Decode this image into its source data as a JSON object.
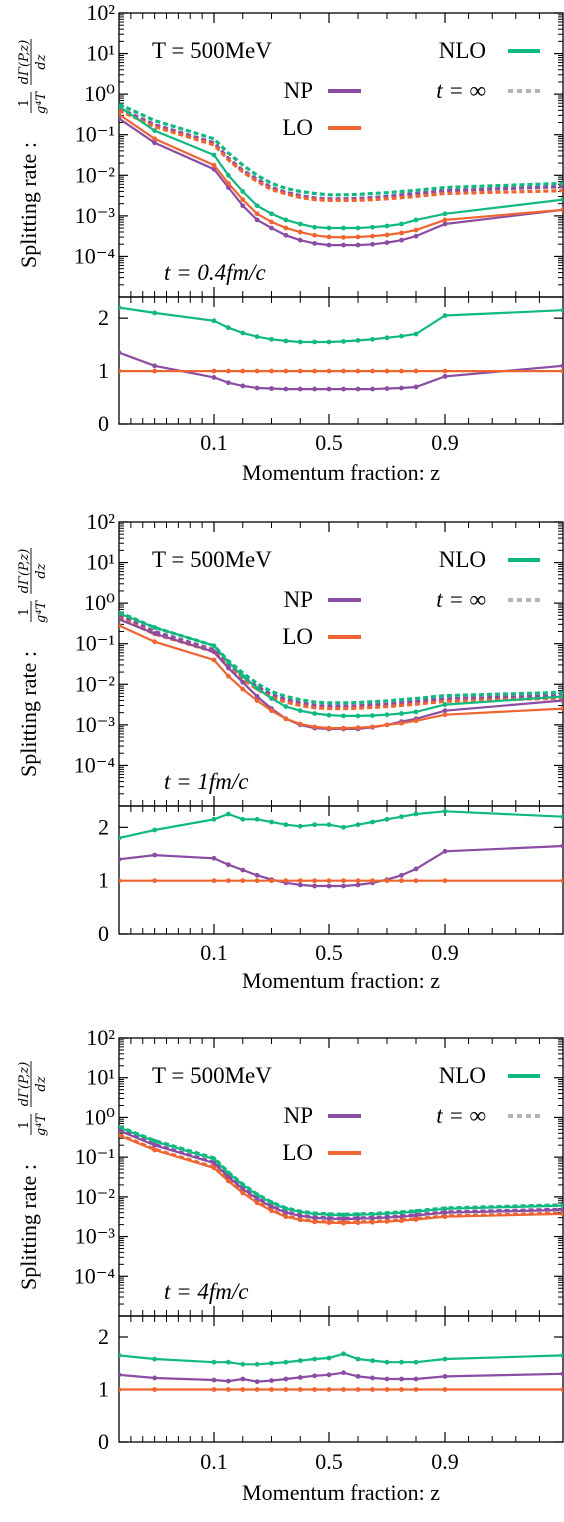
{
  "colors": {
    "NLO": "#10b981",
    "NP": "#8b4ca3",
    "LO": "#ee6531",
    "inf": "#b5b5b5",
    "axis": "#000000"
  },
  "legend": {
    "T_label": "T = 500MeV",
    "NLO": "NLO",
    "NP": "NP",
    "LO": "LO",
    "t_inf": "t = ∞"
  },
  "axes": {
    "ylabel": "Splitting rate : (1/(g⁴T)) dΓ(P,z)/dz",
    "ylabel_prefix": "Splitting rate :",
    "ylabel_num": "dΓ(P,z)",
    "ylabel_num_den": "dz",
    "ylabel_frac_num": "1",
    "ylabel_frac_den": "g⁴T",
    "xlabel": "Momentum fraction: z",
    "x_ticks": [
      "0.1",
      "0.5",
      "0.9"
    ],
    "upper_y_ticks": [
      "10²",
      "10¹",
      "10⁰",
      "10⁻¹",
      "10⁻²",
      "10⁻³",
      "10⁻⁴"
    ],
    "lower_y_ticks": [
      "0",
      "1",
      "2"
    ]
  },
  "chart_data": [
    {
      "type": "line",
      "panel": "top",
      "time_label": "t = 0.4fm/c",
      "x": [
        0.02,
        0.05,
        0.1,
        0.15,
        0.2,
        0.25,
        0.3,
        0.35,
        0.4,
        0.45,
        0.5,
        0.55,
        0.6,
        0.65,
        0.7,
        0.75,
        0.8,
        0.9,
        1.0
      ],
      "ylim_log10": [
        -5,
        2
      ],
      "ratio_ylim": [
        0,
        2.4
      ],
      "series": [
        {
          "name": "NLO",
          "style": "solid",
          "log10_values": [
            -0.3,
            -0.9,
            -1.5,
            -2.0,
            -2.4,
            -2.75,
            -2.95,
            -3.1,
            -3.2,
            -3.28,
            -3.3,
            -3.3,
            -3.3,
            -3.28,
            -3.25,
            -3.2,
            -3.1,
            -2.95,
            -2.6
          ],
          "ratio": [
            2.2,
            2.1,
            1.95,
            1.82,
            1.72,
            1.65,
            1.6,
            1.57,
            1.55,
            1.55,
            1.55,
            1.56,
            1.58,
            1.6,
            1.63,
            1.66,
            1.7,
            2.05,
            2.15
          ]
        },
        {
          "name": "NP",
          "style": "solid",
          "log10_values": [
            -0.6,
            -1.2,
            -1.85,
            -2.3,
            -2.75,
            -3.1,
            -3.3,
            -3.48,
            -3.6,
            -3.68,
            -3.72,
            -3.72,
            -3.72,
            -3.7,
            -3.66,
            -3.6,
            -3.5,
            -3.2,
            -2.85
          ],
          "ratio": [
            1.35,
            1.1,
            0.88,
            0.78,
            0.72,
            0.68,
            0.67,
            0.66,
            0.66,
            0.66,
            0.66,
            0.66,
            0.66,
            0.66,
            0.67,
            0.68,
            0.7,
            0.9,
            1.1
          ]
        },
        {
          "name": "LO",
          "style": "solid",
          "log10_values": [
            -0.5,
            -1.1,
            -1.75,
            -2.2,
            -2.6,
            -2.95,
            -3.15,
            -3.3,
            -3.4,
            -3.48,
            -3.52,
            -3.53,
            -3.52,
            -3.5,
            -3.47,
            -3.42,
            -3.35,
            -3.1,
            -2.85
          ],
          "ratio": [
            1,
            1,
            1,
            1,
            1,
            1,
            1,
            1,
            1,
            1,
            1,
            1,
            1,
            1,
            1,
            1,
            1,
            1,
            1
          ]
        },
        {
          "name": "NLO t=∞",
          "style": "dashed",
          "log10_values": [
            -0.25,
            -0.65,
            -1.1,
            -1.45,
            -1.75,
            -2.0,
            -2.2,
            -2.32,
            -2.4,
            -2.45,
            -2.48,
            -2.48,
            -2.47,
            -2.45,
            -2.43,
            -2.4,
            -2.37,
            -2.3,
            -2.2
          ]
        },
        {
          "name": "NP t=∞",
          "style": "dashed",
          "log10_values": [
            -0.35,
            -0.75,
            -1.2,
            -1.58,
            -1.88,
            -2.1,
            -2.3,
            -2.42,
            -2.5,
            -2.56,
            -2.58,
            -2.58,
            -2.57,
            -2.55,
            -2.52,
            -2.48,
            -2.45,
            -2.38,
            -2.28
          ]
        },
        {
          "name": "LO t=∞",
          "style": "dashed",
          "log10_values": [
            -0.4,
            -0.8,
            -1.25,
            -1.62,
            -1.92,
            -2.15,
            -2.35,
            -2.46,
            -2.55,
            -2.6,
            -2.62,
            -2.62,
            -2.62,
            -2.6,
            -2.58,
            -2.55,
            -2.52,
            -2.45,
            -2.38
          ]
        }
      ]
    },
    {
      "type": "line",
      "panel": "middle",
      "time_label": "t = 1fm/c",
      "x": [
        0.02,
        0.05,
        0.1,
        0.15,
        0.2,
        0.25,
        0.3,
        0.35,
        0.4,
        0.45,
        0.5,
        0.55,
        0.6,
        0.65,
        0.7,
        0.75,
        0.8,
        0.9,
        1.0
      ],
      "ylim_log10": [
        -5,
        2
      ],
      "ratio_ylim": [
        0,
        2.4
      ],
      "series": [
        {
          "name": "NLO",
          "style": "solid",
          "log10_values": [
            -0.25,
            -0.6,
            -1.05,
            -1.45,
            -1.8,
            -2.1,
            -2.35,
            -2.55,
            -2.65,
            -2.72,
            -2.76,
            -2.78,
            -2.78,
            -2.77,
            -2.75,
            -2.72,
            -2.68,
            -2.5,
            -2.3
          ],
          "ratio": [
            1.8,
            1.95,
            2.15,
            2.25,
            2.15,
            2.15,
            2.1,
            2.05,
            2.02,
            2.05,
            2.05,
            2.0,
            2.05,
            2.1,
            2.15,
            2.2,
            2.25,
            2.3,
            2.2
          ]
        },
        {
          "name": "NP",
          "style": "solid",
          "log10_values": [
            -0.4,
            -0.75,
            -1.2,
            -1.6,
            -1.95,
            -2.3,
            -2.6,
            -2.85,
            -3.0,
            -3.08,
            -3.1,
            -3.1,
            -3.1,
            -3.06,
            -3.0,
            -2.92,
            -2.85,
            -2.65,
            -2.4
          ],
          "ratio": [
            1.4,
            1.48,
            1.42,
            1.3,
            1.2,
            1.1,
            1.02,
            0.96,
            0.92,
            0.9,
            0.9,
            0.9,
            0.92,
            0.96,
            1.02,
            1.1,
            1.22,
            1.55,
            1.65
          ]
        },
        {
          "name": "LO",
          "style": "solid",
          "log10_values": [
            -0.55,
            -0.95,
            -1.4,
            -1.8,
            -2.12,
            -2.4,
            -2.65,
            -2.85,
            -2.98,
            -3.05,
            -3.08,
            -3.08,
            -3.07,
            -3.05,
            -3.0,
            -2.96,
            -2.9,
            -2.75,
            -2.6
          ],
          "ratio": [
            1,
            1,
            1,
            1,
            1,
            1,
            1,
            1,
            1,
            1,
            1,
            1,
            1,
            1,
            1,
            1,
            1,
            1,
            1
          ]
        },
        {
          "name": "NLO t=∞",
          "style": "dashed",
          "log10_values": [
            -0.22,
            -0.6,
            -1.05,
            -1.42,
            -1.72,
            -1.98,
            -2.18,
            -2.3,
            -2.38,
            -2.44,
            -2.46,
            -2.46,
            -2.45,
            -2.43,
            -2.41,
            -2.38,
            -2.35,
            -2.28,
            -2.2
          ]
        },
        {
          "name": "NP t=∞",
          "style": "dashed",
          "log10_values": [
            -0.3,
            -0.7,
            -1.15,
            -1.52,
            -1.82,
            -2.06,
            -2.26,
            -2.38,
            -2.46,
            -2.52,
            -2.54,
            -2.54,
            -2.53,
            -2.51,
            -2.49,
            -2.46,
            -2.43,
            -2.36,
            -2.28
          ]
        },
        {
          "name": "LO t=∞",
          "style": "dashed",
          "log10_values": [
            -0.36,
            -0.76,
            -1.2,
            -1.58,
            -1.88,
            -2.12,
            -2.32,
            -2.44,
            -2.52,
            -2.58,
            -2.6,
            -2.6,
            -2.59,
            -2.57,
            -2.55,
            -2.52,
            -2.49,
            -2.42,
            -2.34
          ]
        }
      ]
    },
    {
      "type": "line",
      "panel": "bottom",
      "time_label": "t = 4fm/c",
      "x": [
        0.02,
        0.05,
        0.1,
        0.15,
        0.2,
        0.25,
        0.3,
        0.35,
        0.4,
        0.45,
        0.5,
        0.55,
        0.6,
        0.65,
        0.7,
        0.75,
        0.8,
        0.9,
        1.0
      ],
      "ylim_log10": [
        -5,
        2
      ],
      "ratio_ylim": [
        0,
        2.4
      ],
      "series": [
        {
          "name": "NLO",
          "style": "solid",
          "log10_values": [
            -0.25,
            -0.6,
            -1.05,
            -1.4,
            -1.7,
            -1.95,
            -2.15,
            -2.3,
            -2.38,
            -2.43,
            -2.45,
            -2.46,
            -2.45,
            -2.44,
            -2.42,
            -2.4,
            -2.37,
            -2.3,
            -2.22
          ],
          "ratio": [
            1.65,
            1.58,
            1.52,
            1.52,
            1.48,
            1.48,
            1.5,
            1.52,
            1.55,
            1.58,
            1.6,
            1.68,
            1.58,
            1.55,
            1.52,
            1.52,
            1.52,
            1.58,
            1.65
          ]
        },
        {
          "name": "NP",
          "style": "solid",
          "log10_values": [
            -0.33,
            -0.7,
            -1.15,
            -1.5,
            -1.8,
            -2.05,
            -2.25,
            -2.4,
            -2.48,
            -2.53,
            -2.55,
            -2.56,
            -2.55,
            -2.54,
            -2.52,
            -2.5,
            -2.47,
            -2.4,
            -2.33
          ],
          "ratio": [
            1.28,
            1.22,
            1.18,
            1.16,
            1.2,
            1.15,
            1.17,
            1.2,
            1.23,
            1.26,
            1.28,
            1.32,
            1.25,
            1.22,
            1.2,
            1.2,
            1.2,
            1.25,
            1.3
          ]
        },
        {
          "name": "LO",
          "style": "solid",
          "log10_values": [
            -0.45,
            -0.82,
            -1.27,
            -1.6,
            -1.9,
            -2.15,
            -2.35,
            -2.5,
            -2.58,
            -2.63,
            -2.65,
            -2.66,
            -2.65,
            -2.64,
            -2.62,
            -2.6,
            -2.57,
            -2.5,
            -2.43
          ],
          "ratio": [
            1,
            1,
            1,
            1,
            1,
            1,
            1,
            1,
            1,
            1,
            1,
            1,
            1,
            1,
            1,
            1,
            1,
            1,
            1
          ]
        },
        {
          "name": "NLO t=∞",
          "style": "dashed",
          "log10_values": [
            -0.23,
            -0.58,
            -1.02,
            -1.38,
            -1.68,
            -1.93,
            -2.13,
            -2.28,
            -2.36,
            -2.41,
            -2.43,
            -2.44,
            -2.43,
            -2.42,
            -2.4,
            -2.38,
            -2.35,
            -2.28,
            -2.2
          ]
        },
        {
          "name": "NP t=∞",
          "style": "dashed",
          "log10_values": [
            -0.31,
            -0.68,
            -1.13,
            -1.48,
            -1.78,
            -2.03,
            -2.23,
            -2.38,
            -2.46,
            -2.51,
            -2.53,
            -2.54,
            -2.53,
            -2.52,
            -2.5,
            -2.48,
            -2.45,
            -2.38,
            -2.31
          ]
        },
        {
          "name": "LO t=∞",
          "style": "dashed",
          "log10_values": [
            -0.43,
            -0.8,
            -1.25,
            -1.58,
            -1.88,
            -2.13,
            -2.33,
            -2.48,
            -2.56,
            -2.61,
            -2.63,
            -2.64,
            -2.63,
            -2.62,
            -2.6,
            -2.58,
            -2.55,
            -2.48,
            -2.41
          ]
        }
      ]
    }
  ]
}
